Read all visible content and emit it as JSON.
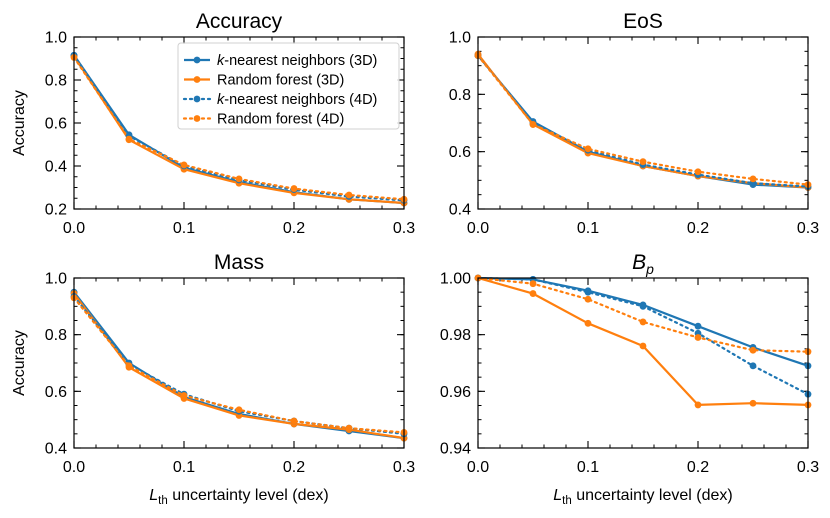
{
  "figure": {
    "background": "#ffffff",
    "colors": {
      "knn": "#1f77b4",
      "rf": "#ff7f0e"
    }
  },
  "chart_data": [
    {
      "type": "line",
      "title": "Accuracy",
      "title_italic": false,
      "xlabel": "",
      "ylabel": "Accuracy",
      "xlim": [
        0,
        0.3
      ],
      "ylim": [
        0.2,
        1.0
      ],
      "xticks": [
        "0.0",
        "0.1",
        "0.2",
        "0.3"
      ],
      "yticks": [
        "0.2",
        "0.4",
        "0.6",
        "0.8",
        "1.0"
      ],
      "x": [
        0,
        0.05,
        0.1,
        0.15,
        0.2,
        0.25,
        0.3
      ],
      "series": [
        {
          "name": "k-nearest neighbors (3D)",
          "values": [
            0.915,
            0.545,
            0.392,
            0.325,
            0.278,
            0.245,
            0.228
          ]
        },
        {
          "name": "Random forest (3D)",
          "values": [
            0.91,
            0.522,
            0.385,
            0.32,
            0.275,
            0.245,
            0.228
          ]
        },
        {
          "name": "k-nearest neighbors (4D)",
          "values": [
            0.915,
            0.54,
            0.4,
            0.335,
            0.29,
            0.258,
            0.24
          ]
        },
        {
          "name": "Random forest (4D)",
          "values": [
            0.905,
            0.525,
            0.405,
            0.34,
            0.295,
            0.265,
            0.245
          ]
        }
      ],
      "legend": {
        "placement": "upper-right",
        "entries": [
          {
            "prefix": "",
            "italic": "k",
            "suffix": "-nearest neighbors (3D)"
          },
          {
            "prefix": "Random forest (3D)",
            "italic": "",
            "suffix": ""
          },
          {
            "prefix": "",
            "italic": "k",
            "suffix": "-nearest neighbors (4D)"
          },
          {
            "prefix": "Random forest (4D)",
            "italic": "",
            "suffix": ""
          }
        ]
      }
    },
    {
      "type": "line",
      "title": "EoS",
      "title_italic": false,
      "xlabel": "",
      "ylabel": "",
      "xlim": [
        0,
        0.3
      ],
      "ylim": [
        0.4,
        1.0
      ],
      "xticks": [
        "0.0",
        "0.1",
        "0.2",
        "0.3"
      ],
      "yticks": [
        "0.4",
        "0.6",
        "0.8",
        "1.0"
      ],
      "x": [
        0,
        0.05,
        0.1,
        0.15,
        0.2,
        0.25,
        0.3
      ],
      "series": [
        {
          "name": "k-nearest neighbors (3D)",
          "values": [
            0.935,
            0.705,
            0.6,
            0.55,
            0.515,
            0.485,
            0.475
          ]
        },
        {
          "name": "Random forest (3D)",
          "values": [
            0.94,
            0.695,
            0.595,
            0.55,
            0.515,
            0.49,
            0.475
          ]
        },
        {
          "name": "k-nearest neighbors (4D)",
          "values": [
            0.935,
            0.7,
            0.605,
            0.555,
            0.52,
            0.49,
            0.478
          ]
        },
        {
          "name": "Random forest (4D)",
          "values": [
            0.935,
            0.695,
            0.61,
            0.565,
            0.53,
            0.505,
            0.485
          ]
        }
      ]
    },
    {
      "type": "line",
      "title": "Mass",
      "title_italic": false,
      "xlabel": "uncertainty level (dex)",
      "xlabel_symbol": "L",
      "xlabel_sub": "th",
      "ylabel": "Accuracy",
      "xlim": [
        0,
        0.3
      ],
      "ylim": [
        0.4,
        1.0
      ],
      "xticks": [
        "0.0",
        "0.1",
        "0.2",
        "0.3"
      ],
      "yticks": [
        "0.4",
        "0.6",
        "0.8",
        "1.0"
      ],
      "x": [
        0,
        0.05,
        0.1,
        0.15,
        0.2,
        0.25,
        0.3
      ],
      "series": [
        {
          "name": "k-nearest neighbors (3D)",
          "values": [
            0.95,
            0.7,
            0.58,
            0.52,
            0.485,
            0.46,
            0.435
          ]
        },
        {
          "name": "Random forest (3D)",
          "values": [
            0.945,
            0.685,
            0.575,
            0.515,
            0.485,
            0.465,
            0.435
          ]
        },
        {
          "name": "k-nearest neighbors (4D)",
          "values": [
            0.935,
            0.695,
            0.59,
            0.53,
            0.495,
            0.47,
            0.45
          ]
        },
        {
          "name": "Random forest (4D)",
          "values": [
            0.93,
            0.69,
            0.585,
            0.535,
            0.495,
            0.47,
            0.455
          ]
        }
      ]
    },
    {
      "type": "line",
      "title": "B",
      "title_italic": true,
      "title_sub": "p",
      "xlabel": "uncertainty level (dex)",
      "xlabel_symbol": "L",
      "xlabel_sub": "th",
      "ylabel": "",
      "xlim": [
        0,
        0.3
      ],
      "ylim": [
        0.94,
        1.0
      ],
      "xticks": [
        "0.0",
        "0.1",
        "0.2",
        "0.3"
      ],
      "yticks": [
        "0.94",
        "0.96",
        "0.98",
        "1.00"
      ],
      "x": [
        0,
        0.05,
        0.1,
        0.15,
        0.2,
        0.25,
        0.3
      ],
      "series": [
        {
          "name": "k-nearest neighbors (3D)",
          "values": [
            1.0,
            0.9995,
            0.9955,
            0.9905,
            0.983,
            0.9755,
            0.969
          ]
        },
        {
          "name": "Random forest (3D)",
          "values": [
            1.0,
            0.9945,
            0.984,
            0.976,
            0.9552,
            0.9558,
            0.9552
          ]
        },
        {
          "name": "k-nearest neighbors (4D)",
          "values": [
            1.0,
            0.9995,
            0.995,
            0.99,
            0.9805,
            0.969,
            0.959
          ]
        },
        {
          "name": "Random forest (4D)",
          "values": [
            1.0,
            0.998,
            0.9925,
            0.9845,
            0.979,
            0.9745,
            0.974
          ]
        }
      ]
    }
  ]
}
